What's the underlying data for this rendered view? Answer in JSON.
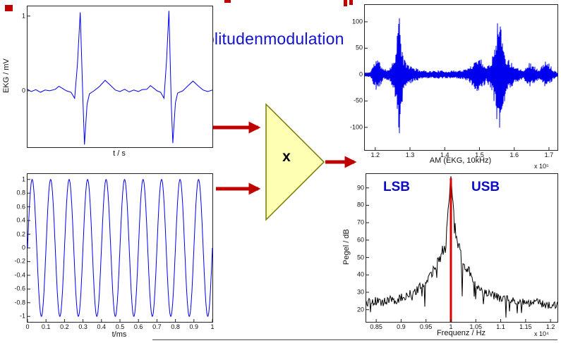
{
  "title": "Amplitudenmodulation",
  "multiplier": {
    "label": "x"
  },
  "colors": {
    "title_blue": "#1111cc",
    "annotation_blue": "#0a0acc",
    "signal_blue": "#0000ee",
    "spectrum_black": "#000000",
    "arrow_red": "#c00000",
    "marker_red": "#dd0000",
    "triangle_fill": "#ffffb3",
    "triangle_border": "#7a7a00"
  },
  "chart_data": [
    {
      "type": "line",
      "signal": "keypoints",
      "ylabel": "EKG / mV",
      "xlabel": "t / s",
      "xlim": [
        0,
        1
      ],
      "ylim": [
        -0.755,
        1.13
      ],
      "yticks": [
        0,
        1
      ],
      "xticks": [],
      "color": "#0000ee",
      "line_width": 1,
      "points": [
        [
          0.0,
          0.02
        ],
        [
          0.02,
          -0.01
        ],
        [
          0.045,
          0.015
        ],
        [
          0.07,
          -0.02
        ],
        [
          0.095,
          0.01
        ],
        [
          0.12,
          0.0
        ],
        [
          0.15,
          0.02
        ],
        [
          0.17,
          0.06
        ],
        [
          0.19,
          0.03
        ],
        [
          0.21,
          0.0
        ],
        [
          0.235,
          -0.02
        ],
        [
          0.255,
          -0.1
        ],
        [
          0.27,
          0.35
        ],
        [
          0.285,
          1.05
        ],
        [
          0.3,
          -0.15
        ],
        [
          0.308,
          -0.72
        ],
        [
          0.322,
          -0.18
        ],
        [
          0.335,
          -0.04
        ],
        [
          0.36,
          0.0
        ],
        [
          0.39,
          0.06
        ],
        [
          0.42,
          0.14
        ],
        [
          0.45,
          0.07
        ],
        [
          0.475,
          0.01
        ],
        [
          0.5,
          -0.01
        ],
        [
          0.525,
          0.02
        ],
        [
          0.55,
          -0.015
        ],
        [
          0.575,
          0.01
        ],
        [
          0.6,
          -0.01
        ],
        [
          0.62,
          0.015
        ],
        [
          0.645,
          0.02
        ],
        [
          0.665,
          0.07
        ],
        [
          0.685,
          0.03
        ],
        [
          0.7,
          0.0
        ],
        [
          0.72,
          -0.02
        ],
        [
          0.738,
          -0.1
        ],
        [
          0.752,
          0.4
        ],
        [
          0.765,
          1.07
        ],
        [
          0.778,
          -0.2
        ],
        [
          0.786,
          -0.7
        ],
        [
          0.8,
          -0.16
        ],
        [
          0.812,
          -0.03
        ],
        [
          0.84,
          0.0
        ],
        [
          0.865,
          0.06
        ],
        [
          0.895,
          0.13
        ],
        [
          0.925,
          0.06
        ],
        [
          0.95,
          0.01
        ],
        [
          0.975,
          -0.01
        ],
        [
          1.0,
          0.01
        ]
      ]
    },
    {
      "type": "line",
      "signal": "sine",
      "ylabel": "",
      "xlabel": "t/ms",
      "cycles": 10,
      "amplitude": 1,
      "xlim": [
        0,
        1
      ],
      "ylim": [
        -1.08,
        1.08
      ],
      "yticks": [
        1,
        0.8,
        0.6,
        0.4,
        0.2,
        0,
        -0.2,
        -0.4,
        -0.6,
        -0.8,
        -1
      ],
      "xticks": [
        0,
        0.1,
        0.2,
        0.3,
        0.4,
        0.5,
        0.6,
        0.7,
        0.8,
        0.9,
        1
      ],
      "color": "#0000ee",
      "line_width": 1
    },
    {
      "type": "line",
      "signal": "am",
      "ylabel": "",
      "xlabel": "AM (EKG, 10kHz)",
      "exponent": "x 10⁵",
      "xlim": [
        1.17,
        1.7245
      ],
      "ylim": [
        -143,
        132
      ],
      "yticks": [
        100,
        50,
        0,
        -50,
        -100
      ],
      "xticks": [
        1.2,
        1.3,
        1.4,
        1.5,
        1.6,
        1.7
      ],
      "color": "#0000ee",
      "line_width": 1,
      "envelope": [
        [
          1.17,
          4
        ],
        [
          1.185,
          5
        ],
        [
          1.195,
          20
        ],
        [
          1.205,
          32
        ],
        [
          1.215,
          22
        ],
        [
          1.225,
          10
        ],
        [
          1.24,
          12
        ],
        [
          1.255,
          30
        ],
        [
          1.263,
          80
        ],
        [
          1.268,
          128
        ],
        [
          1.274,
          70
        ],
        [
          1.282,
          30
        ],
        [
          1.295,
          20
        ],
        [
          1.31,
          14
        ],
        [
          1.33,
          9
        ],
        [
          1.355,
          7
        ],
        [
          1.38,
          8
        ],
        [
          1.405,
          7
        ],
        [
          1.43,
          8
        ],
        [
          1.455,
          9
        ],
        [
          1.47,
          14
        ],
        [
          1.485,
          26
        ],
        [
          1.497,
          36
        ],
        [
          1.508,
          28
        ],
        [
          1.52,
          14
        ],
        [
          1.535,
          30
        ],
        [
          1.548,
          80
        ],
        [
          1.556,
          125
        ],
        [
          1.565,
          75
        ],
        [
          1.578,
          32
        ],
        [
          1.592,
          24
        ],
        [
          1.61,
          14
        ],
        [
          1.628,
          10
        ],
        [
          1.645,
          24
        ],
        [
          1.658,
          16
        ],
        [
          1.672,
          9
        ],
        [
          1.69,
          26
        ],
        [
          1.703,
          20
        ],
        [
          1.715,
          8
        ],
        [
          1.7245,
          5
        ]
      ]
    },
    {
      "type": "line",
      "signal": "spectrum",
      "ylabel": "Pegel / dB",
      "xlabel": "Frequenz / Hz",
      "exponent": "x 10⁴",
      "xlim": [
        0.83,
        1.214
      ],
      "ylim": [
        13,
        98
      ],
      "yticks": [
        90,
        80,
        70,
        60,
        50,
        40,
        30,
        20
      ],
      "xticks": [
        0.85,
        0.9,
        0.95,
        1,
        1.05,
        1.1,
        1.15,
        1.2
      ],
      "color": "#000000",
      "line_width": 1,
      "noise": 5,
      "marker": {
        "x": 1.0,
        "y_top": 95.5,
        "color": "#dd0000"
      },
      "annotations": [
        {
          "text": "LSB"
        },
        {
          "text": "USB"
        }
      ],
      "points": [
        [
          0.83,
          24
        ],
        [
          0.845,
          25
        ],
        [
          0.86,
          24
        ],
        [
          0.875,
          26
        ],
        [
          0.89,
          25
        ],
        [
          0.9,
          27
        ],
        [
          0.91,
          28
        ],
        [
          0.92,
          29
        ],
        [
          0.93,
          31
        ],
        [
          0.938,
          33
        ],
        [
          0.944,
          35
        ],
        [
          0.946,
          34
        ],
        [
          0.9475,
          20
        ],
        [
          0.949,
          36
        ],
        [
          0.953,
          38
        ],
        [
          0.958,
          42
        ],
        [
          0.962,
          40
        ],
        [
          0.966,
          46
        ],
        [
          0.97,
          44
        ],
        [
          0.974,
          50
        ],
        [
          0.978,
          48
        ],
        [
          0.982,
          55
        ],
        [
          0.986,
          52
        ],
        [
          0.99,
          62
        ],
        [
          0.993,
          72
        ],
        [
          0.996,
          83
        ],
        [
          0.998,
          90
        ],
        [
          1.0,
          95
        ],
        [
          1.002,
          90
        ],
        [
          1.004,
          83
        ],
        [
          1.007,
          72
        ],
        [
          1.01,
          63
        ],
        [
          1.013,
          57
        ],
        [
          1.016,
          59
        ],
        [
          1.019,
          53
        ],
        [
          1.021,
          50
        ],
        [
          1.0225,
          24
        ],
        [
          1.024,
          48
        ],
        [
          1.028,
          45
        ],
        [
          1.032,
          42
        ],
        [
          1.036,
          44
        ],
        [
          1.04,
          39
        ],
        [
          1.045,
          36
        ],
        [
          1.05,
          34
        ],
        [
          1.058,
          32
        ],
        [
          1.066,
          30
        ],
        [
          1.075,
          29
        ],
        [
          1.085,
          28
        ],
        [
          1.095,
          27
        ],
        [
          1.11,
          26
        ],
        [
          1.13,
          25
        ],
        [
          1.15,
          24
        ],
        [
          1.17,
          24
        ],
        [
          1.19,
          23
        ],
        [
          1.214,
          23
        ]
      ]
    }
  ]
}
